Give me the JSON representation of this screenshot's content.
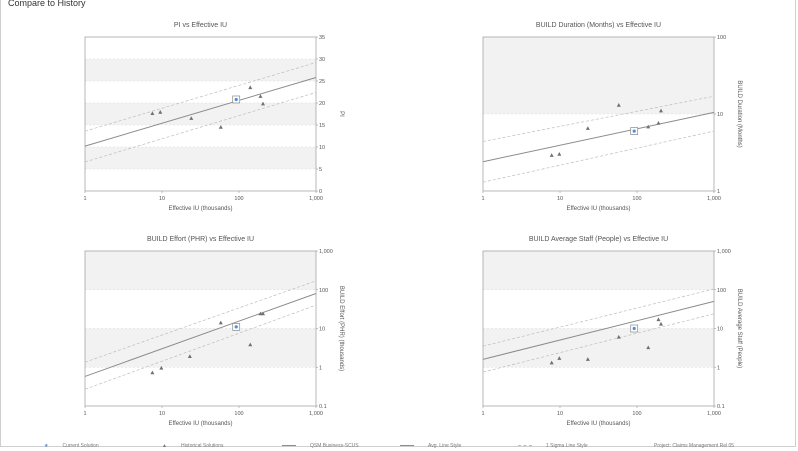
{
  "page": {
    "title": "Compare to History"
  },
  "colors": {
    "band": "#f2f2f2",
    "axis": "#9a9a9a",
    "trend": "#8c8c8c",
    "sigma": "#bdbdbd",
    "grid": "#d9d9d9",
    "historical": "#707070",
    "current": "#4a90e2",
    "text": "#555555"
  },
  "legend": {
    "items": [
      {
        "label": "Current Solution",
        "icon": "blue-star"
      },
      {
        "label": "Historical Solutions",
        "icon": "gray-triangle"
      },
      {
        "label": "QSM Business-SCUS",
        "icon": "solid-line"
      },
      {
        "label": "Avg. Line Style",
        "icon": "solid-line"
      },
      {
        "label": "1 Sigma Line Style",
        "icon": "dashed-line"
      },
      {
        "label": "Project: Claims Management Rel 05",
        "icon": "none"
      }
    ]
  },
  "chart_data": [
    {
      "type": "scatter",
      "title": "PI vs Effective IU",
      "xlabel": "Effective IU (thousands)",
      "ylabel": "PI",
      "xscale": "log",
      "yscale": "linear",
      "xlim": [
        1,
        1000
      ],
      "ylim": [
        0,
        35
      ],
      "xticks": [
        "1",
        "10",
        "100",
        "1,000"
      ],
      "yticks": [
        "0",
        "5",
        "10",
        "15",
        "20",
        "25",
        "30",
        "35"
      ],
      "bands": [
        [
          5,
          10
        ],
        [
          15,
          20
        ],
        [
          25,
          30
        ]
      ],
      "trend": {
        "avg": [
          [
            1,
            10.2
          ],
          [
            1000,
            25.8
          ]
        ],
        "upper": [
          [
            1,
            13.6
          ],
          [
            1000,
            29.2
          ]
        ],
        "lower": [
          [
            1,
            6.6
          ],
          [
            1000,
            22.4
          ]
        ]
      },
      "historical": [
        [
          7.5,
          17.6
        ],
        [
          9.5,
          17.9
        ],
        [
          24,
          16.5
        ],
        [
          58,
          14.5
        ],
        [
          140,
          23.5
        ],
        [
          190,
          21.5
        ],
        [
          205,
          19.8
        ]
      ],
      "current": [
        [
          92,
          20.8
        ]
      ]
    },
    {
      "type": "scatter",
      "title": "BUILD Duration (Months) vs Effective IU",
      "xlabel": "Effective IU (thousands)",
      "ylabel": "BUILD Duration (Months)",
      "xscale": "log",
      "yscale": "log",
      "xlim": [
        1,
        1000
      ],
      "ylim": [
        1,
        100
      ],
      "xticks": [
        "1",
        "10",
        "100",
        "1,000"
      ],
      "yticks": [
        "1",
        "10",
        "100"
      ],
      "bands": [
        [
          10,
          100
        ]
      ],
      "trend": {
        "avg": [
          [
            1,
            2.4
          ],
          [
            1000,
            10.5
          ]
        ],
        "upper": [
          [
            1,
            4.4
          ],
          [
            1000,
            17
          ]
        ],
        "lower": [
          [
            1,
            1.3
          ],
          [
            1000,
            6
          ]
        ]
      },
      "historical": [
        [
          7.8,
          2.9
        ],
        [
          9.8,
          3.0
        ],
        [
          23,
          6.5
        ],
        [
          58,
          13
        ],
        [
          140,
          6.8
        ],
        [
          190,
          7.6
        ],
        [
          205,
          11
        ]
      ],
      "current": [
        [
          92,
          6.0
        ]
      ]
    },
    {
      "type": "scatter",
      "title": "BUILD Effort (PHR) vs Effective IU",
      "xlabel": "Effective IU (thousands)",
      "ylabel": "BUILD Effort (PHR) (thousands)",
      "xscale": "log",
      "yscale": "log",
      "xlim": [
        1,
        1000
      ],
      "ylim": [
        0.1,
        1000
      ],
      "xticks": [
        "1",
        "10",
        "100",
        "1,000"
      ],
      "yticks": [
        "0.1",
        "1",
        "10",
        "100",
        "1,000"
      ],
      "bands": [
        [
          1,
          10
        ],
        [
          100,
          1000
        ]
      ],
      "trend": {
        "avg": [
          [
            1,
            0.58
          ],
          [
            1000,
            80
          ]
        ],
        "upper": [
          [
            1,
            1.35
          ],
          [
            1000,
            170
          ]
        ],
        "lower": [
          [
            1,
            0.27
          ],
          [
            1000,
            40
          ]
        ]
      },
      "historical": [
        [
          7.5,
          0.72
        ],
        [
          9.8,
          0.95
        ],
        [
          23,
          1.9
        ],
        [
          58,
          14
        ],
        [
          140,
          3.8
        ],
        [
          190,
          24
        ],
        [
          205,
          24
        ]
      ],
      "current": [
        [
          92,
          11
        ]
      ]
    },
    {
      "type": "scatter",
      "title": "BUILD Average Staff (People) vs Effective IU",
      "xlabel": "Effective IU (thousands)",
      "ylabel": "BUILD Average Staff (People)",
      "xscale": "log",
      "yscale": "log",
      "xlim": [
        1,
        1000
      ],
      "ylim": [
        0.1,
        1000
      ],
      "xticks": [
        "1",
        "10",
        "100",
        "1,000"
      ],
      "yticks": [
        "0.1",
        "1",
        "10",
        "100",
        "1,000"
      ],
      "bands": [
        [
          1,
          10
        ],
        [
          100,
          1000
        ]
      ],
      "trend": {
        "avg": [
          [
            1,
            1.6
          ],
          [
            1000,
            50
          ]
        ],
        "upper": [
          [
            1,
            3.5
          ],
          [
            1000,
            105
          ]
        ],
        "lower": [
          [
            1,
            0.75
          ],
          [
            1000,
            24
          ]
        ]
      },
      "historical": [
        [
          7.8,
          1.3
        ],
        [
          9.8,
          1.7
        ],
        [
          23,
          1.6
        ],
        [
          58,
          6.0
        ],
        [
          140,
          3.2
        ],
        [
          190,
          17
        ],
        [
          205,
          13
        ]
      ],
      "current": [
        [
          92,
          10
        ]
      ]
    }
  ]
}
